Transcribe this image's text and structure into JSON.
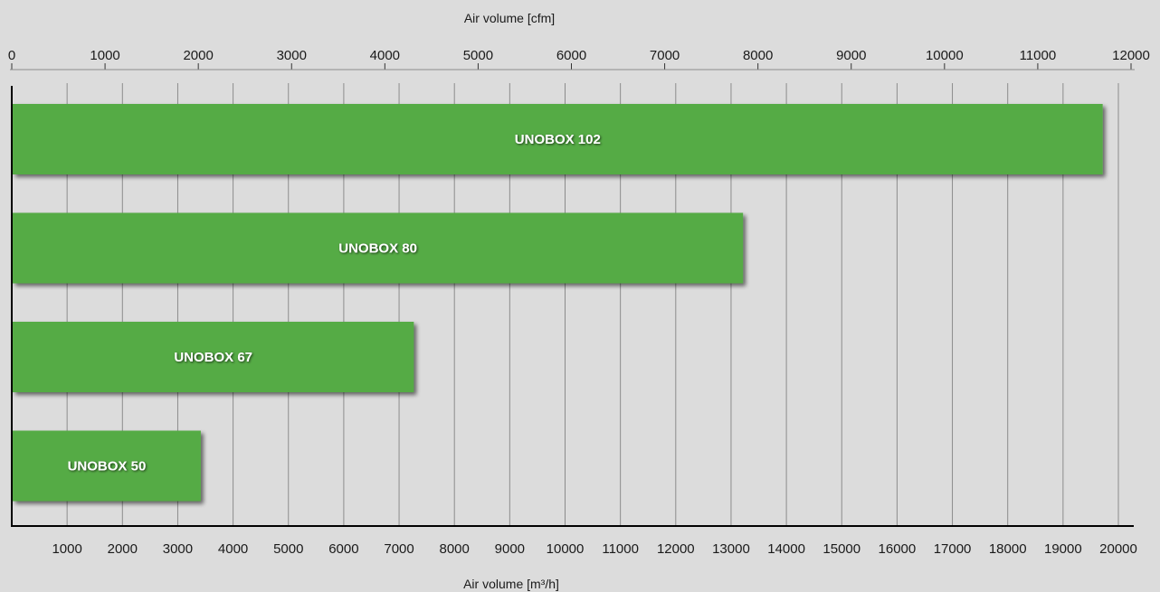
{
  "chart_data": {
    "type": "bar",
    "orientation": "horizontal",
    "categories": [
      "UNOBOX 102",
      "UNOBOX 80",
      "UNOBOX 67",
      "UNOBOX 50"
    ],
    "values": [
      19700,
      13200,
      7250,
      3400
    ],
    "bar_color": "#55ab45",
    "background_color": "#dcdcdc",
    "grid": true,
    "grid_axis": "x",
    "x_bottom": {
      "label": "Air volume [m³/h]",
      "range": [
        0,
        20000
      ],
      "ticks": [
        1000,
        2000,
        3000,
        4000,
        5000,
        6000,
        7000,
        8000,
        9000,
        10000,
        11000,
        12000,
        13000,
        14000,
        15000,
        16000,
        17000,
        18000,
        19000,
        20000
      ],
      "tick_labels": [
        "1000",
        "2000",
        "3000",
        "4000",
        "5000",
        "6000",
        "7000",
        "8000",
        "9000",
        "10000",
        "11000",
        "12000",
        "13000",
        "14000",
        "15000",
        "16000",
        "17000",
        "18000",
        "19000",
        "20000"
      ]
    },
    "x_top": {
      "label": "Air volume [cfm]",
      "range": [
        0,
        12000
      ],
      "ticks": [
        0,
        1000,
        2000,
        3000,
        4000,
        5000,
        6000,
        7000,
        8000,
        9000,
        10000,
        11000,
        12000
      ],
      "tick_labels": [
        "0",
        "1000",
        "2000",
        "3000",
        "4000",
        "5000",
        "6000",
        "7000",
        "8000",
        "9000",
        "10000",
        "11000",
        "12000"
      ]
    }
  }
}
